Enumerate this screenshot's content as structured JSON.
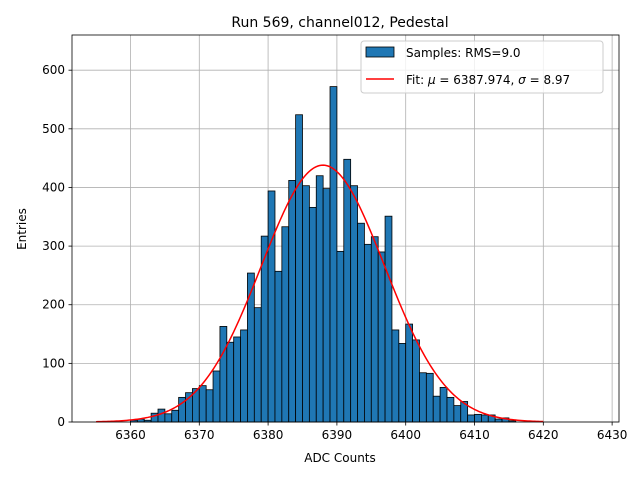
{
  "chart_data": {
    "type": "bar",
    "title": "Run 569, channel012, Pedestal",
    "xlabel": "ADC Counts",
    "ylabel": "Entries",
    "xlim": [
      6351.5,
      6431
    ],
    "ylim": [
      0,
      660
    ],
    "xticks": [
      6360,
      6370,
      6380,
      6390,
      6400,
      6410,
      6420,
      6430
    ],
    "yticks": [
      0,
      100,
      200,
      300,
      400,
      500,
      600
    ],
    "grid": true,
    "legend_position": "top-right",
    "bins": {
      "x_start": [
        6355,
        6356,
        6357,
        6358,
        6359,
        6360,
        6361,
        6362,
        6363,
        6364,
        6365,
        6366,
        6367,
        6368,
        6369,
        6370,
        6371,
        6372,
        6373,
        6374,
        6375,
        6376,
        6377,
        6378,
        6379,
        6380,
        6381,
        6382,
        6383,
        6384,
        6385,
        6386,
        6387,
        6388,
        6389,
        6390,
        6391,
        6392,
        6393,
        6394,
        6395,
        6396,
        6397,
        6398,
        6399,
        6400,
        6401,
        6402,
        6403,
        6404,
        6405,
        6406,
        6407,
        6408,
        6409,
        6410,
        6411,
        6412,
        6413,
        6414,
        6415,
        6416,
        6417,
        6418,
        6419
      ],
      "width": 1,
      "values": [
        0,
        0,
        0,
        0,
        0,
        3,
        5,
        3,
        15,
        22,
        14,
        20,
        42,
        50,
        57,
        62,
        55,
        87,
        163,
        136,
        145,
        157,
        254,
        195,
        317,
        394,
        257,
        333,
        412,
        524,
        403,
        366,
        420,
        398,
        572,
        291,
        448,
        403,
        339,
        303,
        316,
        290,
        351,
        157,
        134,
        167,
        140,
        84,
        83,
        44,
        59,
        42,
        28,
        35,
        12,
        13,
        12,
        12,
        5,
        7,
        2,
        0,
        0,
        0,
        0
      ],
      "color": "#1f77b4",
      "edgecolor": "#000000"
    },
    "series": [
      {
        "name": "Samples: RMS=9.0",
        "kind": "histogram",
        "color": "#1f77b4"
      },
      {
        "name_prefix": "Fit: ",
        "name_mu": "μ",
        "name_mid": " = 6387.974, ",
        "name_sigma": "σ",
        "name_suffix": " = 8.97",
        "kind": "fit-curve",
        "color": "#ff0000",
        "mu": 6387.974,
        "sigma": 8.97,
        "amplitude": 438,
        "x_range": [
          6355,
          6420
        ]
      }
    ]
  }
}
